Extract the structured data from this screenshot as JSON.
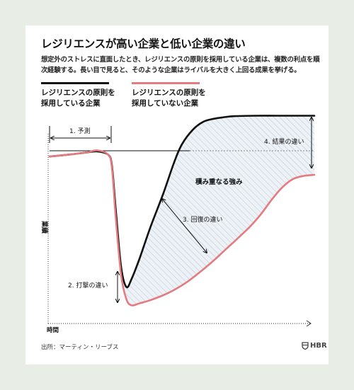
{
  "title": "レジリエンスが高い企業と低い企業の違い",
  "subtitle": "想定外のストレスに直面したとき、レジリエンスの原則を採用している企業は、複数の利点を順次経験する。長い目で見ると、そのような企業はライバルを大きく上回る成果を挙げる。",
  "legend": [
    {
      "name": "レジリエンスの原則を\n採用している企業",
      "color": "#111111"
    },
    {
      "name": "レジリエンスの原則を\n採用していない企業",
      "color": "#e47b80"
    }
  ],
  "chart_data": {
    "type": "line",
    "xlabel": "時間",
    "ylabel": "業績",
    "xlim": [
      0,
      100
    ],
    "ylim": [
      0,
      100
    ],
    "series": [
      {
        "name": "レジリエンスの原則を採用している企業",
        "color": "#111111",
        "x": [
          0,
          8,
          14,
          18,
          22,
          23.5,
          25,
          27,
          29,
          31,
          34,
          38,
          43,
          47,
          50,
          54,
          58,
          62,
          66,
          70,
          78,
          86,
          100
        ],
        "y": [
          76,
          77,
          78,
          78.5,
          77,
          72,
          50,
          22,
          12,
          16,
          26,
          41,
          58,
          73,
          82,
          89,
          93,
          94.5,
          95.3,
          95.8,
          96,
          96,
          96
        ]
      },
      {
        "name": "レジリエンスの原則を採用していない企業",
        "color": "#e47b80",
        "x": [
          0,
          8,
          14,
          18,
          22,
          23.5,
          25,
          27,
          29,
          31,
          34,
          38,
          43,
          47,
          52,
          57,
          62,
          67,
          72,
          76,
          80,
          84,
          88,
          92,
          96,
          100
        ],
        "y": [
          76,
          77,
          78,
          79,
          77,
          71,
          46,
          18,
          6,
          3,
          4,
          5.5,
          8,
          10.5,
          14.5,
          19.5,
          25,
          31,
          37,
          42,
          48,
          55,
          61,
          65,
          66.5,
          67
        ]
      }
    ],
    "annotations": {
      "forecast": "1. 予測",
      "impact": "2. 打撃の違い",
      "recovery": "3. 回復の違い",
      "result": "4. 結果の違い",
      "area": "積み重なる強み"
    }
  },
  "source": "出所：マーティン・リーブス",
  "brand": "HBR",
  "brand_icon": "shield-icon",
  "colors": {
    "background": "#e8eee6",
    "hatch": "#b9c4d2",
    "fill": "#edf2f7"
  }
}
